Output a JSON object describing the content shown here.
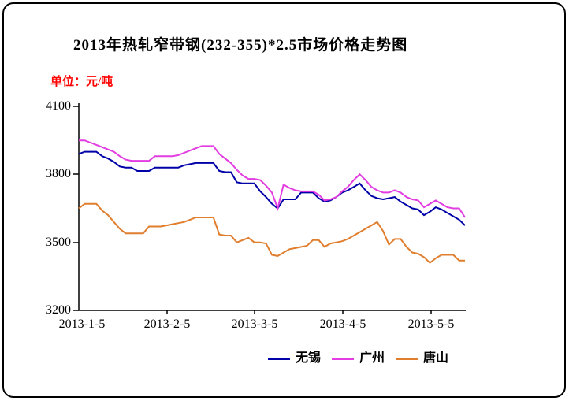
{
  "window": {
    "title": "2013年热轧窄带钢(232-355)*2.5市场价格走势图",
    "unit_label": "单位：元/吨"
  },
  "chart_data": {
    "type": "line",
    "title": "2013年热轧窄带钢(232-355)*2.5市场价格走势图",
    "title_color": "#ff0000",
    "unit": "单位：元/吨",
    "grid": false,
    "legend_position": "bottom",
    "ylim": [
      3200,
      4100
    ],
    "y_ticks": [
      4100,
      3800,
      3500,
      3200
    ],
    "x_tick_labels": [
      "2013-1-5",
      "2013-2-5",
      "2013-3-5",
      "2013-4-5",
      "2013-5-5"
    ],
    "x_note": "points sampled about every 2 days from 2013-1-5 to mid May",
    "series": [
      {
        "name": "无锡",
        "color": "#0000a8",
        "values": [
          3890,
          3900,
          3900,
          3900,
          3880,
          3870,
          3855,
          3835,
          3830,
          3830,
          3815,
          3815,
          3815,
          3830,
          3830,
          3830,
          3830,
          3830,
          3840,
          3845,
          3850,
          3850,
          3850,
          3850,
          3815,
          3810,
          3810,
          3765,
          3760,
          3760,
          3760,
          3725,
          3700,
          3670,
          3650,
          3690,
          3690,
          3690,
          3720,
          3720,
          3720,
          3695,
          3680,
          3685,
          3700,
          3720,
          3730,
          3745,
          3760,
          3730,
          3705,
          3695,
          3690,
          3695,
          3700,
          3680,
          3665,
          3650,
          3645,
          3620,
          3635,
          3655,
          3645,
          3630,
          3615,
          3600,
          3575
        ]
      },
      {
        "name": "广州",
        "color": "#e23ce2",
        "values": [
          3950,
          3950,
          3940,
          3930,
          3920,
          3910,
          3900,
          3880,
          3865,
          3860,
          3860,
          3860,
          3860,
          3880,
          3880,
          3880,
          3880,
          3885,
          3895,
          3905,
          3915,
          3925,
          3925,
          3925,
          3890,
          3870,
          3850,
          3820,
          3795,
          3780,
          3780,
          3775,
          3750,
          3720,
          3650,
          3755,
          3740,
          3730,
          3725,
          3725,
          3725,
          3710,
          3685,
          3690,
          3700,
          3725,
          3745,
          3775,
          3800,
          3775,
          3745,
          3730,
          3720,
          3720,
          3730,
          3720,
          3700,
          3690,
          3685,
          3655,
          3670,
          3685,
          3670,
          3655,
          3650,
          3650,
          3610
        ]
      },
      {
        "name": "唐山",
        "color": "#e07e2e",
        "values": [
          3650,
          3670,
          3670,
          3670,
          3640,
          3620,
          3590,
          3560,
          3540,
          3540,
          3540,
          3540,
          3570,
          3570,
          3570,
          3575,
          3580,
          3585,
          3590,
          3600,
          3610,
          3610,
          3610,
          3610,
          3535,
          3530,
          3530,
          3500,
          3510,
          3520,
          3500,
          3500,
          3495,
          3445,
          3440,
          3455,
          3470,
          3475,
          3480,
          3485,
          3510,
          3510,
          3480,
          3495,
          3500,
          3505,
          3515,
          3530,
          3545,
          3560,
          3575,
          3590,
          3550,
          3490,
          3515,
          3515,
          3480,
          3455,
          3450,
          3435,
          3410,
          3430,
          3445,
          3445,
          3445,
          3420,
          3420
        ]
      }
    ]
  }
}
